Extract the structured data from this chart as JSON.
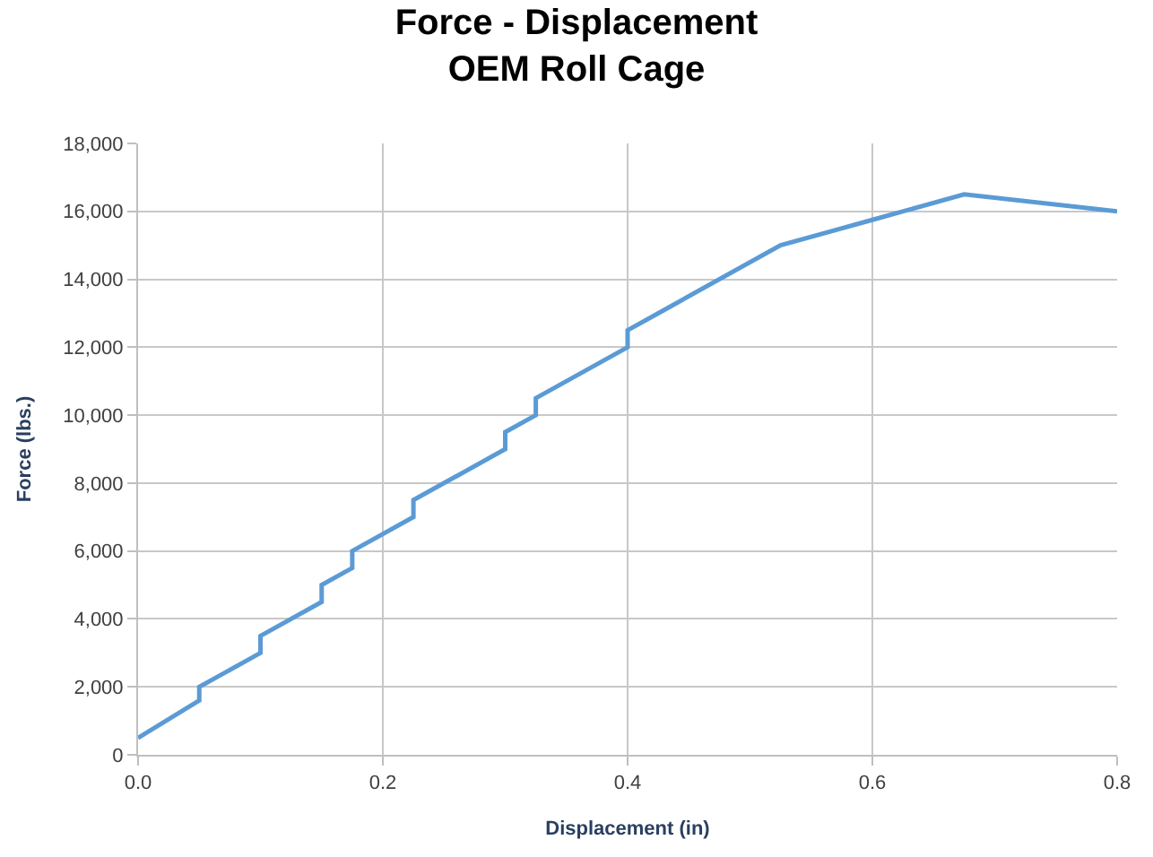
{
  "chart_data": {
    "type": "line",
    "title": "Force - Displacement\nOEM Roll Cage",
    "xlabel": "Displacement (in)",
    "ylabel": "Force (lbs.)",
    "x": [
      0,
      0.05,
      0.05,
      0.1,
      0.1,
      0.15,
      0.15,
      0.175,
      0.175,
      0.225,
      0.225,
      0.3,
      0.3,
      0.325,
      0.325,
      0.4,
      0.4,
      0.425,
      0.525,
      0.6,
      0.675,
      0.8
    ],
    "values": [
      500,
      1600,
      2000,
      3000,
      3500,
      4500,
      5000,
      5500,
      6000,
      7000,
      7500,
      9000,
      9500,
      10000,
      10500,
      12000,
      12500,
      13000,
      15000,
      15750,
      16500,
      16000
    ],
    "color": "#5b9bd5",
    "xlim": [
      0,
      0.8
    ],
    "xticks": [
      {
        "value": 0,
        "label": "0.0"
      },
      0.2,
      0.4,
      0.6,
      0.8
    ],
    "ylim": [
      0,
      18000
    ],
    "yticks": [
      0,
      {
        "value": 2000,
        "label": "2,000"
      },
      {
        "value": 4000,
        "label": "4,000"
      },
      {
        "value": 6000,
        "label": "6,000"
      },
      {
        "value": 8000,
        "label": "8,000"
      },
      {
        "value": 10000,
        "label": "10,000"
      },
      {
        "value": 12000,
        "label": "12,000"
      },
      {
        "value": 14000,
        "label": "14,000"
      },
      {
        "value": 16000,
        "label": "16,000"
      },
      {
        "value": 18000,
        "label": "18,000"
      }
    ],
    "grid": true,
    "legend": false,
    "marker": "none",
    "line_style": "solid"
  }
}
